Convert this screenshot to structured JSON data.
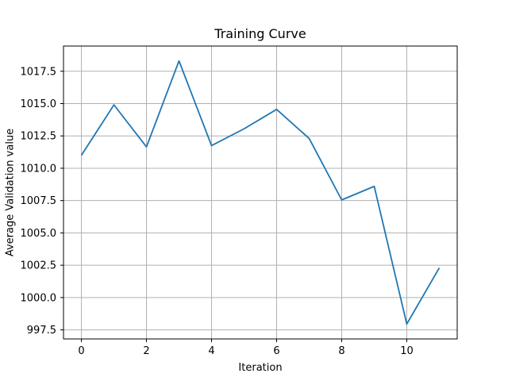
{
  "chart_data": {
    "type": "line",
    "title": "Training Curve",
    "xlabel": "Iteration",
    "ylabel": "Average Validation value",
    "x": [
      0,
      1,
      2,
      3,
      4,
      5,
      6,
      7,
      8,
      9,
      10,
      11
    ],
    "series": [
      {
        "values": [
          1011.0,
          1014.9,
          1011.65,
          1018.3,
          1011.75,
          1013.05,
          1014.55,
          1012.3,
          1007.55,
          1008.6,
          997.95,
          1002.3
        ],
        "color": "#1f77b4"
      }
    ],
    "xlim": [
      -0.55,
      11.55
    ],
    "ylim": [
      996.8,
      1019.45
    ],
    "xticks": [
      0,
      2,
      4,
      6,
      8,
      10
    ],
    "xtick_labels": [
      "0",
      "2",
      "4",
      "6",
      "8",
      "10"
    ],
    "yticks": [
      997.5,
      1000.0,
      1002.5,
      1005.0,
      1007.5,
      1010.0,
      1012.5,
      1015.0,
      1017.5
    ],
    "ytick_labels": [
      "997.5",
      "1000.0",
      "1002.5",
      "1005.0",
      "1007.5",
      "1010.0",
      "1012.5",
      "1015.0",
      "1017.5"
    ],
    "grid": true,
    "legend": false
  }
}
